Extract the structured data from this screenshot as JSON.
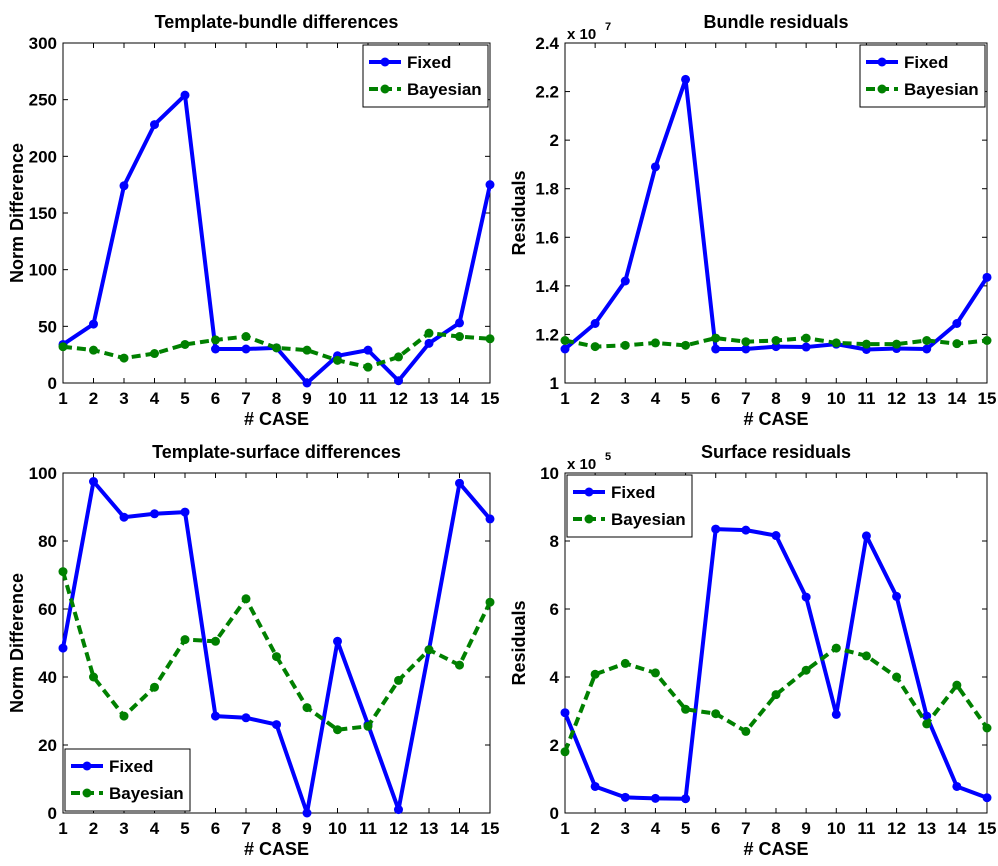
{
  "chart_data": [
    {
      "type": "line",
      "title": "Template-bundle differences",
      "xlabel": "# CASE",
      "ylabel": "Norm Difference",
      "exponent_label": "",
      "x": [
        1,
        2,
        3,
        4,
        5,
        6,
        7,
        8,
        9,
        10,
        11,
        12,
        13,
        14,
        15
      ],
      "xlim": [
        1,
        15
      ],
      "ylim": [
        0,
        300
      ],
      "yticks": [
        0,
        50,
        100,
        150,
        200,
        250,
        300
      ],
      "ytick_labels": [
        "0",
        "50",
        "100",
        "150",
        "200",
        "250",
        "300"
      ],
      "grid": false,
      "legend_position": "top-right",
      "series": [
        {
          "name": "Fixed",
          "color": "#0000ff",
          "style": "solid",
          "values": [
            34,
            52,
            174,
            228,
            254,
            30,
            30,
            31,
            0,
            24,
            29,
            2,
            35,
            53,
            175
          ]
        },
        {
          "name": "Bayesian",
          "color": "#008000",
          "style": "dashed",
          "values": [
            32,
            29,
            22,
            26,
            34,
            38,
            41,
            31,
            29,
            20,
            14,
            23,
            44,
            41,
            39
          ]
        }
      ]
    },
    {
      "type": "line",
      "title": "Bundle residuals",
      "xlabel": "# CASE",
      "ylabel": "Residuals",
      "exponent_label": "x 10",
      "exponent_power": "7",
      "x": [
        1,
        2,
        3,
        4,
        5,
        6,
        7,
        8,
        9,
        10,
        11,
        12,
        13,
        14,
        15
      ],
      "xlim": [
        1,
        15
      ],
      "ylim": [
        10000000,
        24000000
      ],
      "yticks": [
        10000000,
        12000000,
        14000000,
        16000000,
        18000000,
        20000000,
        22000000,
        24000000
      ],
      "ytick_labels": [
        "1",
        "1.2",
        "1.4",
        "1.6",
        "1.8",
        "2",
        "2.2",
        "2.4"
      ],
      "grid": false,
      "legend_position": "top-right",
      "series": [
        {
          "name": "Fixed",
          "color": "#0000ff",
          "style": "solid",
          "values": [
            11400000,
            12450000,
            14200000,
            18900000,
            22500000,
            11400000,
            11400000,
            11500000,
            11480000,
            11600000,
            11380000,
            11420000,
            11400000,
            12450000,
            14350000
          ]
        },
        {
          "name": "Bayesian",
          "color": "#008000",
          "style": "dashed",
          "values": [
            11750000,
            11500000,
            11550000,
            11650000,
            11550000,
            11850000,
            11700000,
            11750000,
            11850000,
            11650000,
            11600000,
            11600000,
            11750000,
            11620000,
            11750000
          ]
        }
      ]
    },
    {
      "type": "line",
      "title": "Template-surface differences",
      "xlabel": "# CASE",
      "ylabel": "Norm Difference",
      "exponent_label": "",
      "x": [
        1,
        2,
        3,
        4,
        5,
        6,
        7,
        8,
        9,
        10,
        11,
        12,
        13,
        14,
        15
      ],
      "xlim": [
        1,
        15
      ],
      "ylim": [
        0,
        100
      ],
      "yticks": [
        0,
        20,
        40,
        60,
        80,
        100
      ],
      "ytick_labels": [
        "0",
        "20",
        "40",
        "60",
        "80",
        "100"
      ],
      "grid": false,
      "legend_position": "bottom-left",
      "series": [
        {
          "name": "Fixed",
          "color": "#0000ff",
          "style": "solid",
          "values": [
            48.5,
            97.5,
            87,
            88,
            88.5,
            28.5,
            28,
            26,
            0,
            50.5,
            26,
            1,
            48,
            97,
            86.5
          ]
        },
        {
          "name": "Bayesian",
          "color": "#008000",
          "style": "dashed",
          "values": [
            71,
            40,
            28.5,
            37,
            51,
            50.5,
            63,
            46,
            31,
            24.5,
            25.5,
            39,
            48,
            43.5,
            62
          ]
        }
      ]
    },
    {
      "type": "line",
      "title": "Surface residuals",
      "xlabel": "# CASE",
      "ylabel": "Residuals",
      "exponent_label": "x 10",
      "exponent_power": "5",
      "x": [
        1,
        2,
        3,
        4,
        5,
        6,
        7,
        8,
        9,
        10,
        11,
        12,
        13,
        14,
        15
      ],
      "xlim": [
        1,
        15
      ],
      "ylim": [
        0,
        1000000
      ],
      "yticks": [
        0,
        200000,
        400000,
        600000,
        800000,
        1000000
      ],
      "ytick_labels": [
        "0",
        "2",
        "4",
        "6",
        "8",
        "10"
      ],
      "grid": false,
      "legend_position": "top-left",
      "series": [
        {
          "name": "Fixed",
          "color": "#0000ff",
          "style": "solid",
          "values": [
            295000,
            78000,
            46000,
            43000,
            42000,
            835000,
            832000,
            816000,
            635000,
            290000,
            815000,
            637000,
            285000,
            78000,
            45000
          ]
        },
        {
          "name": "Bayesian",
          "color": "#008000",
          "style": "dashed",
          "values": [
            180000,
            408000,
            440000,
            412000,
            305000,
            292000,
            240000,
            348000,
            420000,
            485000,
            462000,
            400000,
            262000,
            376000,
            250000
          ]
        }
      ]
    }
  ]
}
